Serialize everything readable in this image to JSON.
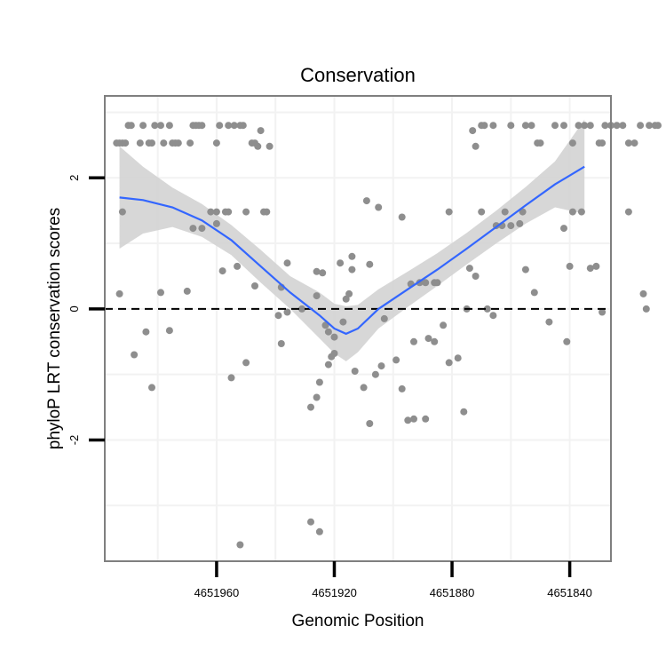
{
  "chart_data": {
    "type": "scatter",
    "title": "Conservation",
    "xlabel": "Genomic Position",
    "ylabel": "phyloP LRT conservation scores",
    "x_reversed": true,
    "xlim": [
      4651998,
      4651826
    ],
    "ylim": [
      -3.85,
      3.25
    ],
    "x_ticks": [
      4651960,
      4651920,
      4651880,
      4651840
    ],
    "x_tick_labels": [
      "4651960",
      "4651920",
      "4651880",
      "4651840"
    ],
    "y_ticks": [
      -2,
      0,
      2
    ],
    "y_tick_labels": [
      "-2",
      "0",
      "2"
    ],
    "reference_line": {
      "y": 0,
      "style": "dashed"
    },
    "grid": true,
    "colors": {
      "points": "#8e8e8e",
      "smooth_line": "#3366ff",
      "confidence_band": "#d3d3d3",
      "panel_border": "#7f7f7f",
      "grid": "#f2f2f2"
    },
    "smooth": {
      "method": "loess",
      "x": [
        4651993,
        4651985,
        4651975,
        4651965,
        4651955,
        4651945,
        4651935,
        4651925,
        4651920,
        4651916,
        4651912,
        4651905,
        4651895,
        4651885,
        4651875,
        4651865,
        4651855,
        4651845,
        4651835
      ],
      "y": [
        1.7,
        1.66,
        1.55,
        1.35,
        1.05,
        0.65,
        0.25,
        -0.1,
        -0.3,
        -0.38,
        -0.3,
        0.0,
        0.3,
        0.6,
        0.92,
        1.25,
        1.58,
        1.9,
        2.17
      ],
      "lower": [
        0.92,
        1.15,
        1.25,
        1.1,
        0.82,
        0.4,
        0.0,
        -0.45,
        -0.68,
        -0.8,
        -0.66,
        -0.3,
        0.03,
        0.35,
        0.68,
        1.0,
        1.3,
        1.55,
        1.45
      ],
      "upper": [
        2.48,
        2.17,
        1.85,
        1.6,
        1.28,
        0.9,
        0.5,
        0.25,
        0.08,
        0.04,
        0.06,
        0.3,
        0.57,
        0.85,
        1.16,
        1.5,
        1.86,
        2.25,
        2.89
      ]
    },
    "points": [
      {
        "x": 4651994,
        "y": 2.53
      },
      {
        "x": 4651993,
        "y": 2.53
      },
      {
        "x": 4651992,
        "y": 2.53
      },
      {
        "x": 4651991,
        "y": 2.53
      },
      {
        "x": 4651990,
        "y": 2.8
      },
      {
        "x": 4651989,
        "y": 2.8
      },
      {
        "x": 4651986,
        "y": 2.53
      },
      {
        "x": 4651985,
        "y": 2.8
      },
      {
        "x": 4651983,
        "y": 2.53
      },
      {
        "x": 4651982,
        "y": 2.53
      },
      {
        "x": 4651981,
        "y": 2.8
      },
      {
        "x": 4651979,
        "y": 2.8
      },
      {
        "x": 4651978,
        "y": 2.53
      },
      {
        "x": 4651976,
        "y": 2.8
      },
      {
        "x": 4651975,
        "y": 2.53
      },
      {
        "x": 4651974,
        "y": 2.53
      },
      {
        "x": 4651973,
        "y": 2.53
      },
      {
        "x": 4651969,
        "y": 2.53
      },
      {
        "x": 4651968,
        "y": 2.8
      },
      {
        "x": 4651967,
        "y": 2.8
      },
      {
        "x": 4651966,
        "y": 2.8
      },
      {
        "x": 4651965,
        "y": 2.8
      },
      {
        "x": 4651960,
        "y": 2.53
      },
      {
        "x": 4651959,
        "y": 2.8
      },
      {
        "x": 4651956,
        "y": 2.8
      },
      {
        "x": 4651954,
        "y": 2.8
      },
      {
        "x": 4651952,
        "y": 2.8
      },
      {
        "x": 4651951,
        "y": 2.8
      },
      {
        "x": 4651948,
        "y": 2.53
      },
      {
        "x": 4651947,
        "y": 2.53
      },
      {
        "x": 4651946,
        "y": 2.48
      },
      {
        "x": 4651945,
        "y": 2.72
      },
      {
        "x": 4651942,
        "y": 2.48
      },
      {
        "x": 4651873,
        "y": 2.72
      },
      {
        "x": 4651872,
        "y": 2.48
      },
      {
        "x": 4651870,
        "y": 2.8
      },
      {
        "x": 4651869,
        "y": 2.8
      },
      {
        "x": 4651866,
        "y": 2.8
      },
      {
        "x": 4651860,
        "y": 2.8
      },
      {
        "x": 4651855,
        "y": 2.8
      },
      {
        "x": 4651853,
        "y": 2.8
      },
      {
        "x": 4651851,
        "y": 2.53
      },
      {
        "x": 4651850,
        "y": 2.53
      },
      {
        "x": 4651845,
        "y": 2.8
      },
      {
        "x": 4651842,
        "y": 2.8
      },
      {
        "x": 4651839,
        "y": 2.53
      },
      {
        "x": 4651837,
        "y": 2.8
      },
      {
        "x": 4651835,
        "y": 2.8
      },
      {
        "x": 4651833,
        "y": 2.8
      },
      {
        "x": 4651830,
        "y": 2.53
      },
      {
        "x": 4651829,
        "y": 2.53
      },
      {
        "x": 4651828,
        "y": 2.8
      },
      {
        "x": 4651826,
        "y": 2.8
      },
      {
        "x": 4651824,
        "y": 2.8
      },
      {
        "x": 4651822,
        "y": 2.8
      },
      {
        "x": 4651820,
        "y": 2.53
      },
      {
        "x": 4651818,
        "y": 2.53
      },
      {
        "x": 4651816,
        "y": 2.8
      },
      {
        "x": 4651813,
        "y": 2.8
      },
      {
        "x": 4651811,
        "y": 2.8
      },
      {
        "x": 4651810,
        "y": 2.8
      },
      {
        "x": 4651992,
        "y": 1.48
      },
      {
        "x": 4651960,
        "y": 1.48
      },
      {
        "x": 4651957,
        "y": 1.48
      },
      {
        "x": 4651956,
        "y": 1.48
      },
      {
        "x": 4651950,
        "y": 1.48
      },
      {
        "x": 4651944,
        "y": 1.48
      },
      {
        "x": 4651943,
        "y": 1.48
      },
      {
        "x": 4651962,
        "y": 1.48
      },
      {
        "x": 4651965,
        "y": 1.23
      },
      {
        "x": 4651968,
        "y": 1.23
      },
      {
        "x": 4651960,
        "y": 1.3
      },
      {
        "x": 4651881,
        "y": 1.48
      },
      {
        "x": 4651870,
        "y": 1.48
      },
      {
        "x": 4651865,
        "y": 1.27
      },
      {
        "x": 4651863,
        "y": 1.27
      },
      {
        "x": 4651862,
        "y": 1.48
      },
      {
        "x": 4651856,
        "y": 1.48
      },
      {
        "x": 4651839,
        "y": 1.48
      },
      {
        "x": 4651820,
        "y": 1.48
      },
      {
        "x": 4651836,
        "y": 1.48
      },
      {
        "x": 4651842,
        "y": 1.23
      },
      {
        "x": 4651857,
        "y": 1.3
      },
      {
        "x": 4651860,
        "y": 1.27
      },
      {
        "x": 4651993,
        "y": 0.23
      },
      {
        "x": 4651979,
        "y": 0.25
      },
      {
        "x": 4651970,
        "y": 0.27
      },
      {
        "x": 4651958,
        "y": 0.58
      },
      {
        "x": 4651953,
        "y": 0.65
      },
      {
        "x": 4651947,
        "y": 0.35
      },
      {
        "x": 4651938,
        "y": 0.33
      },
      {
        "x": 4651936,
        "y": 0.7
      },
      {
        "x": 4651926,
        "y": 0.57
      },
      {
        "x": 4651924,
        "y": 0.55
      },
      {
        "x": 4651918,
        "y": 0.7
      },
      {
        "x": 4651916,
        "y": 0.15
      },
      {
        "x": 4651915,
        "y": 0.23
      },
      {
        "x": 4651914,
        "y": 0.6
      },
      {
        "x": 4651914,
        "y": 0.8
      },
      {
        "x": 4651909,
        "y": 1.65
      },
      {
        "x": 4651908,
        "y": 0.68
      },
      {
        "x": 4651905,
        "y": 1.55
      },
      {
        "x": 4651897,
        "y": 1.4
      },
      {
        "x": 4651894,
        "y": 0.38
      },
      {
        "x": 4651891,
        "y": 0.4
      },
      {
        "x": 4651889,
        "y": 0.4
      },
      {
        "x": 4651886,
        "y": 0.4
      },
      {
        "x": 4651885,
        "y": 0.4
      },
      {
        "x": 4651874,
        "y": 0.62
      },
      {
        "x": 4651872,
        "y": 0.5
      },
      {
        "x": 4651868,
        "y": 0.0
      },
      {
        "x": 4651855,
        "y": 0.6
      },
      {
        "x": 4651852,
        "y": 0.25
      },
      {
        "x": 4651840,
        "y": 0.65
      },
      {
        "x": 4651833,
        "y": 0.62
      },
      {
        "x": 4651831,
        "y": 0.65
      },
      {
        "x": 4651815,
        "y": 0.23
      },
      {
        "x": 4651939,
        "y": -0.1
      },
      {
        "x": 4651936,
        "y": -0.05
      },
      {
        "x": 4651931,
        "y": 0.0
      },
      {
        "x": 4651926,
        "y": 0.2
      },
      {
        "x": 4651923,
        "y": -0.25
      },
      {
        "x": 4651920,
        "y": -0.43
      },
      {
        "x": 4651922,
        "y": -0.35
      },
      {
        "x": 4651917,
        "y": -0.2
      },
      {
        "x": 4651903,
        "y": -0.15
      },
      {
        "x": 4651893,
        "y": -0.5
      },
      {
        "x": 4651888,
        "y": -0.45
      },
      {
        "x": 4651886,
        "y": -0.5
      },
      {
        "x": 4651883,
        "y": -0.25
      },
      {
        "x": 4651878,
        "y": -0.75
      },
      {
        "x": 4651875,
        "y": 0.0
      },
      {
        "x": 4651866,
        "y": -0.1
      },
      {
        "x": 4651847,
        "y": -0.2
      },
      {
        "x": 4651841,
        "y": -0.5
      },
      {
        "x": 4651829,
        "y": -0.05
      },
      {
        "x": 4651814,
        "y": 0.0
      },
      {
        "x": 4651988,
        "y": -0.7
      },
      {
        "x": 4651984,
        "y": -0.35
      },
      {
        "x": 4651982,
        "y": -1.2
      },
      {
        "x": 4651976,
        "y": -0.33
      },
      {
        "x": 4651955,
        "y": -1.05
      },
      {
        "x": 4651938,
        "y": -0.53
      },
      {
        "x": 4651928,
        "y": -1.5
      },
      {
        "x": 4651926,
        "y": -1.35
      },
      {
        "x": 4651925,
        "y": -1.12
      },
      {
        "x": 4651922,
        "y": -0.85
      },
      {
        "x": 4651921,
        "y": -0.73
      },
      {
        "x": 4651920,
        "y": -0.68
      },
      {
        "x": 4651913,
        "y": -0.95
      },
      {
        "x": 4651910,
        "y": -1.2
      },
      {
        "x": 4651908,
        "y": -1.75
      },
      {
        "x": 4651906,
        "y": -1.0
      },
      {
        "x": 4651904,
        "y": -0.87
      },
      {
        "x": 4651899,
        "y": -0.78
      },
      {
        "x": 4651897,
        "y": -1.22
      },
      {
        "x": 4651895,
        "y": -1.7
      },
      {
        "x": 4651893,
        "y": -1.68
      },
      {
        "x": 4651889,
        "y": -1.68
      },
      {
        "x": 4651881,
        "y": -0.82
      },
      {
        "x": 4651876,
        "y": -1.57
      },
      {
        "x": 4651928,
        "y": -3.25
      },
      {
        "x": 4651925,
        "y": -3.4
      },
      {
        "x": 4651952,
        "y": -3.6
      },
      {
        "x": 4651950,
        "y": -0.82
      }
    ]
  }
}
